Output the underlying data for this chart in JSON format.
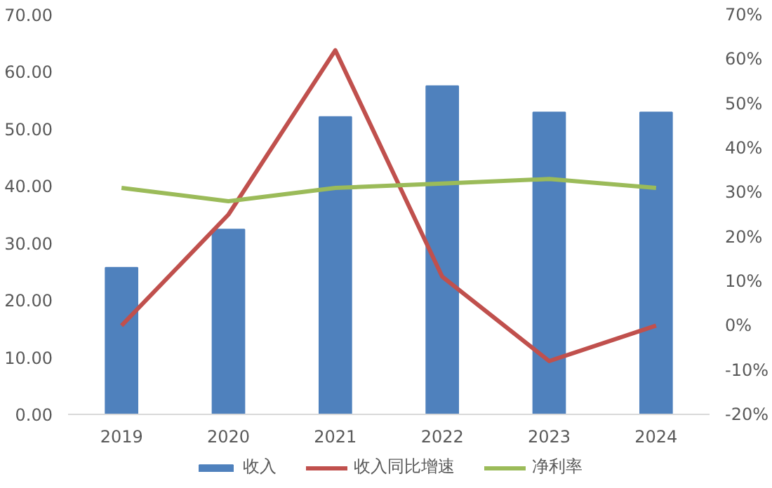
{
  "chart_data": {
    "type": "bar",
    "categories": [
      "2019",
      "2020",
      "2021",
      "2022",
      "2023",
      "2024"
    ],
    "series": [
      {
        "name": "收入",
        "color": "#4f81bd",
        "values": [
          25.7,
          32.4,
          52.1,
          57.5,
          52.9,
          52.9
        ]
      },
      {
        "name": "收入同比增速",
        "type": "line",
        "axis": "y2",
        "color": "#c0504d",
        "values": [
          0,
          25,
          62,
          11,
          -8,
          0
        ]
      },
      {
        "name": "净利率",
        "type": "line",
        "axis": "y2",
        "color": "#9bbb59",
        "values": [
          31,
          28,
          31,
          32,
          33,
          31
        ]
      }
    ],
    "ylim": [
      0,
      70
    ],
    "yticks": [
      {
        "value": 0,
        "label": "0.00"
      },
      {
        "value": 10,
        "label": "10.00"
      },
      {
        "value": 20,
        "label": "20.00"
      },
      {
        "value": 30,
        "label": "30.00"
      },
      {
        "value": 40,
        "label": "40.00"
      },
      {
        "value": 50,
        "label": "50.00"
      },
      {
        "value": 60,
        "label": "60.00"
      },
      {
        "value": 70,
        "label": "70.00"
      }
    ],
    "y2lim": [
      -20,
      70
    ],
    "y2ticks": [
      {
        "value": -20,
        "label": "-20%"
      },
      {
        "value": -10,
        "label": "-10%"
      },
      {
        "value": 0,
        "label": "0%"
      },
      {
        "value": 10,
        "label": "10%"
      },
      {
        "value": 20,
        "label": "20%"
      },
      {
        "value": 30,
        "label": "30%"
      },
      {
        "value": 40,
        "label": "40%"
      },
      {
        "value": 50,
        "label": "50%"
      },
      {
        "value": 60,
        "label": "60%"
      },
      {
        "value": 70,
        "label": "70%"
      }
    ],
    "legend": "bottom",
    "grid": false,
    "marker": "none"
  }
}
